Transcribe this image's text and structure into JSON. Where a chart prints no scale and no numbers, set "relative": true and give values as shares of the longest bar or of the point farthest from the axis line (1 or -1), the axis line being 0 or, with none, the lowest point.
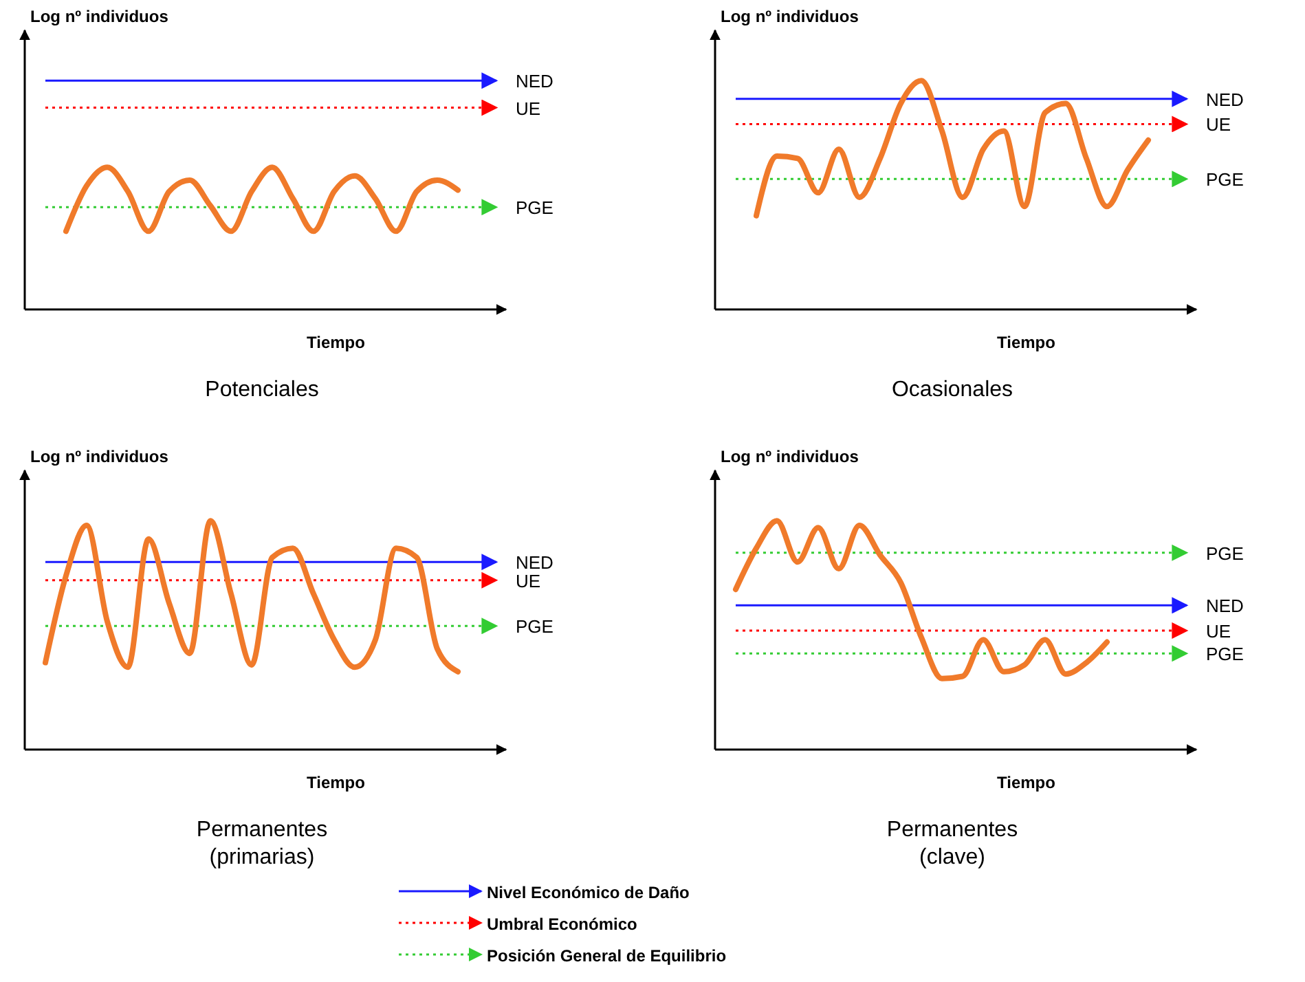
{
  "chart_data": [
    {
      "type": "line",
      "title": "Potenciales",
      "xlabel": "Tiempo",
      "ylabel": "Log nº individuos",
      "relative": true,
      "categories": [
        null,
        null,
        null,
        null,
        null,
        null,
        null,
        null,
        null,
        null,
        null,
        null,
        null,
        null,
        null,
        null,
        null,
        null,
        null,
        null,
        null,
        null,
        null,
        null
      ],
      "series": [
        {
          "color": "#f07a2a",
          "values": [
            null,
            null,
            0.55,
            0.87,
            1,
            0.83,
            0.55,
            0.83,
            0.91,
            0.73,
            0.55,
            0.83,
            1,
            0.78,
            0.55,
            0.83,
            0.94,
            0.78,
            0.55,
            0.83,
            0.91,
            0.84,
            null,
            null
          ]
        }
      ],
      "ref_lines": [
        {
          "axis": "y",
          "value": 1.61,
          "label": "NED",
          "color": "#1a1aff",
          "line_style": "solid"
        },
        {
          "axis": "y",
          "value": 1.42,
          "label": "UE",
          "color": "#ff0000",
          "line_style": "dotted"
        },
        {
          "axis": "y",
          "value": 0.72,
          "label": "PGE",
          "color": "#33cc33",
          "line_style": "dotted"
        }
      ]
    },
    {
      "type": "line",
      "title": "Ocasionales",
      "xlabel": "Tiempo",
      "ylabel": "Log nº individuos",
      "relative": true,
      "categories": [
        null,
        null,
        null,
        null,
        null,
        null,
        null,
        null,
        null,
        null,
        null,
        null,
        null,
        null,
        null,
        null,
        null,
        null,
        null,
        null,
        null,
        null,
        null,
        null
      ],
      "series": [
        {
          "color": "#f07a2a",
          "values": [
            null,
            null,
            0.41,
            0.67,
            0.66,
            0.51,
            0.7,
            0.49,
            0.66,
            0.9,
            1,
            0.78,
            0.49,
            0.7,
            0.78,
            0.45,
            0.86,
            0.9,
            0.66,
            0.45,
            0.61,
            0.74,
            null,
            null
          ]
        }
      ],
      "ref_lines": [
        {
          "axis": "y",
          "value": 0.92,
          "label": "NED",
          "color": "#1a1aff",
          "line_style": "solid"
        },
        {
          "axis": "y",
          "value": 0.81,
          "label": "UE",
          "color": "#ff0000",
          "line_style": "dotted"
        },
        {
          "axis": "y",
          "value": 0.57,
          "label": "PGE",
          "color": "#33cc33",
          "line_style": "dotted"
        }
      ]
    },
    {
      "type": "line",
      "title": "Permanentes\n(primarias)",
      "xlabel": "Tiempo",
      "ylabel": "Log nº individuos",
      "relative": true,
      "categories": [
        null,
        null,
        null,
        null,
        null,
        null,
        null,
        null,
        null,
        null,
        null,
        null,
        null,
        null,
        null,
        null,
        null,
        null,
        null,
        null,
        null,
        null,
        null,
        null
      ],
      "series": [
        {
          "color": "#f07a2a",
          "values": [
            null,
            0.38,
            0.76,
            0.98,
            0.56,
            0.36,
            0.92,
            0.64,
            0.42,
            1,
            0.68,
            0.37,
            0.84,
            0.88,
            0.68,
            0.48,
            0.36,
            0.48,
            0.88,
            0.84,
            0.44,
            0.34,
            null,
            null
          ]
        }
      ],
      "ref_lines": [
        {
          "axis": "y",
          "value": 0.82,
          "label": "NED",
          "color": "#1a1aff",
          "line_style": "solid"
        },
        {
          "axis": "y",
          "value": 0.74,
          "label": "UE",
          "color": "#ff0000",
          "line_style": "dotted"
        },
        {
          "axis": "y",
          "value": 0.54,
          "label": "PGE",
          "color": "#33cc33",
          "line_style": "dotted"
        }
      ]
    },
    {
      "type": "line",
      "title": "Permanentes\n(clave)",
      "xlabel": "Tiempo",
      "ylabel": "Log nº individuos",
      "relative": true,
      "categories": [
        null,
        null,
        null,
        null,
        null,
        null,
        null,
        null,
        null,
        null,
        null,
        null,
        null,
        null,
        null,
        null,
        null,
        null,
        null,
        null,
        null,
        null,
        null,
        null
      ],
      "series": [
        {
          "color": "#f07a2a",
          "values": [
            null,
            0.7,
            0.88,
            1,
            0.82,
            0.97,
            0.79,
            0.98,
            0.85,
            0.73,
            0.49,
            0.31,
            0.32,
            0.48,
            0.34,
            0.37,
            0.48,
            0.33,
            0.38,
            0.47,
            null,
            null,
            null,
            null
          ]
        }
      ],
      "ref_lines": [
        {
          "axis": "y",
          "value": 0.86,
          "label": "PGE",
          "color": "#33cc33",
          "line_style": "dotted"
        },
        {
          "axis": "y",
          "value": 0.63,
          "label": "NED",
          "color": "#1a1aff",
          "line_style": "solid"
        },
        {
          "axis": "y",
          "value": 0.52,
          "label": "UE",
          "color": "#ff0000",
          "line_style": "dotted"
        },
        {
          "axis": "y",
          "value": 0.42,
          "label": "PGE",
          "color": "#33cc33",
          "line_style": "dotted"
        }
      ],
      "annotations": [
        "Nivel Económico de Daño",
        "Umbral Económico",
        "Posición General de Equilibrio"
      ]
    }
  ]
}
